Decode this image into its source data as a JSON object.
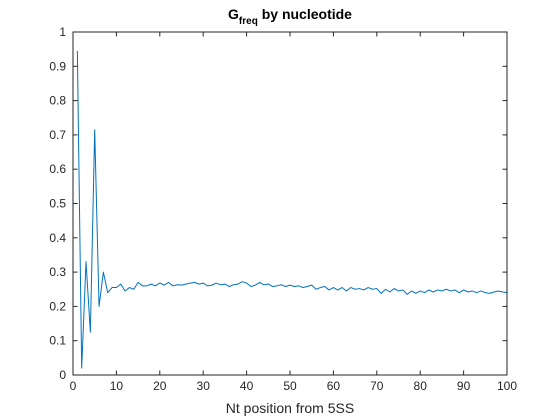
{
  "chart_data": {
    "type": "line",
    "title": {
      "prefix": "G",
      "subscript": "freq",
      "suffix": " by nucleotide"
    },
    "xlabel": "Nt position from 5SS",
    "ylabel": "",
    "xlim": [
      0,
      100
    ],
    "ylim": [
      0,
      1
    ],
    "xticks": [
      0,
      10,
      20,
      30,
      40,
      50,
      60,
      70,
      80,
      90,
      100
    ],
    "yticks": [
      0,
      0.1,
      0.2,
      0.3,
      0.4,
      0.5,
      0.6,
      0.7,
      0.8,
      0.9,
      1
    ],
    "grid": false,
    "legend": null,
    "series": [
      {
        "color": "#0072BD",
        "x": [
          1,
          2,
          3,
          4,
          5,
          6,
          7,
          8,
          9,
          10,
          11,
          12,
          13,
          14,
          15,
          16,
          17,
          18,
          19,
          20,
          21,
          22,
          23,
          24,
          25,
          26,
          27,
          28,
          29,
          30,
          31,
          32,
          33,
          34,
          35,
          36,
          37,
          38,
          39,
          40,
          41,
          42,
          43,
          44,
          45,
          46,
          47,
          48,
          49,
          50,
          51,
          52,
          53,
          54,
          55,
          56,
          57,
          58,
          59,
          60,
          61,
          62,
          63,
          64,
          65,
          66,
          67,
          68,
          69,
          70,
          71,
          72,
          73,
          74,
          75,
          76,
          77,
          78,
          79,
          80,
          81,
          82,
          83,
          84,
          85,
          86,
          87,
          88,
          89,
          90,
          91,
          92,
          93,
          94,
          95,
          96,
          97,
          98,
          99,
          100
        ],
        "y": [
          0.945,
          0.02,
          0.33,
          0.125,
          0.715,
          0.2,
          0.3,
          0.24,
          0.255,
          0.255,
          0.265,
          0.245,
          0.255,
          0.25,
          0.27,
          0.26,
          0.26,
          0.265,
          0.26,
          0.268,
          0.262,
          0.27,
          0.26,
          0.263,
          0.262,
          0.265,
          0.268,
          0.27,
          0.265,
          0.268,
          0.26,
          0.262,
          0.268,
          0.263,
          0.265,
          0.258,
          0.263,
          0.265,
          0.272,
          0.268,
          0.258,
          0.262,
          0.27,
          0.263,
          0.265,
          0.258,
          0.26,
          0.263,
          0.258,
          0.262,
          0.258,
          0.26,
          0.255,
          0.258,
          0.262,
          0.25,
          0.255,
          0.258,
          0.248,
          0.255,
          0.248,
          0.255,
          0.245,
          0.255,
          0.25,
          0.252,
          0.248,
          0.255,
          0.25,
          0.252,
          0.238,
          0.25,
          0.242,
          0.252,
          0.245,
          0.248,
          0.235,
          0.245,
          0.238,
          0.245,
          0.24,
          0.248,
          0.242,
          0.248,
          0.245,
          0.25,
          0.245,
          0.248,
          0.24,
          0.248,
          0.242,
          0.245,
          0.24,
          0.245,
          0.24,
          0.238,
          0.242,
          0.245,
          0.242,
          0.24
        ]
      }
    ]
  }
}
